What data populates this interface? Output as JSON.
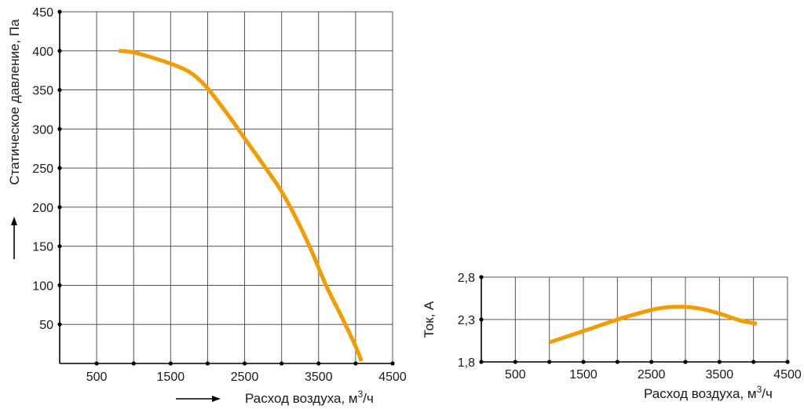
{
  "chart_data": [
    {
      "type": "line",
      "title": "",
      "xlabel": "Расход воздуха, м³/ч",
      "ylabel": "Статическое давление, Па",
      "xlim": [
        0,
        4500
      ],
      "ylim": [
        0,
        450
      ],
      "x_ticks": [
        500,
        1000,
        1500,
        2000,
        2500,
        3000,
        3500,
        4000,
        4500
      ],
      "x_tick_labels": [
        "500",
        "",
        "1500",
        "",
        "2500",
        "",
        "3500",
        "",
        "4500"
      ],
      "y_ticks": [
        50,
        100,
        150,
        200,
        250,
        300,
        350,
        400,
        450
      ],
      "y_tick_labels": [
        "50",
        "100",
        "150",
        "200",
        "250",
        "300",
        "350",
        "400",
        "450"
      ],
      "grid": true,
      "series": [
        {
          "color": "#F39C00",
          "x": [
            800,
            1000,
            1300,
            1600,
            1800,
            2000,
            2300,
            2500,
            2800,
            3000,
            3200,
            3400,
            3600,
            3800,
            4000,
            4080
          ],
          "y": [
            400,
            398,
            390,
            380,
            370,
            352,
            315,
            288,
            248,
            220,
            185,
            145,
            100,
            62,
            22,
            3
          ]
        }
      ]
    },
    {
      "type": "line",
      "title": "",
      "xlabel": "Расход воздуха, м³/ч",
      "ylabel": "Ток, А",
      "xlim": [
        0,
        4500
      ],
      "ylim": [
        1.8,
        2.8
      ],
      "x_ticks": [
        500,
        1000,
        1500,
        2000,
        2500,
        3000,
        3500,
        4000,
        4500
      ],
      "x_tick_labels": [
        "500",
        "",
        "1500",
        "",
        "2500",
        "",
        "3500",
        "",
        "4500"
      ],
      "y_ticks": [
        1.8,
        2.3,
        2.8
      ],
      "y_tick_labels": [
        "1,8",
        "2,3",
        "2,8"
      ],
      "grid": true,
      "series": [
        {
          "color": "#F39C00",
          "x": [
            1000,
            1300,
            1600,
            2000,
            2300,
            2600,
            2900,
            3200,
            3500,
            3800,
            4050
          ],
          "y": [
            2.03,
            2.11,
            2.19,
            2.3,
            2.37,
            2.43,
            2.45,
            2.43,
            2.37,
            2.29,
            2.25
          ]
        }
      ]
    }
  ]
}
